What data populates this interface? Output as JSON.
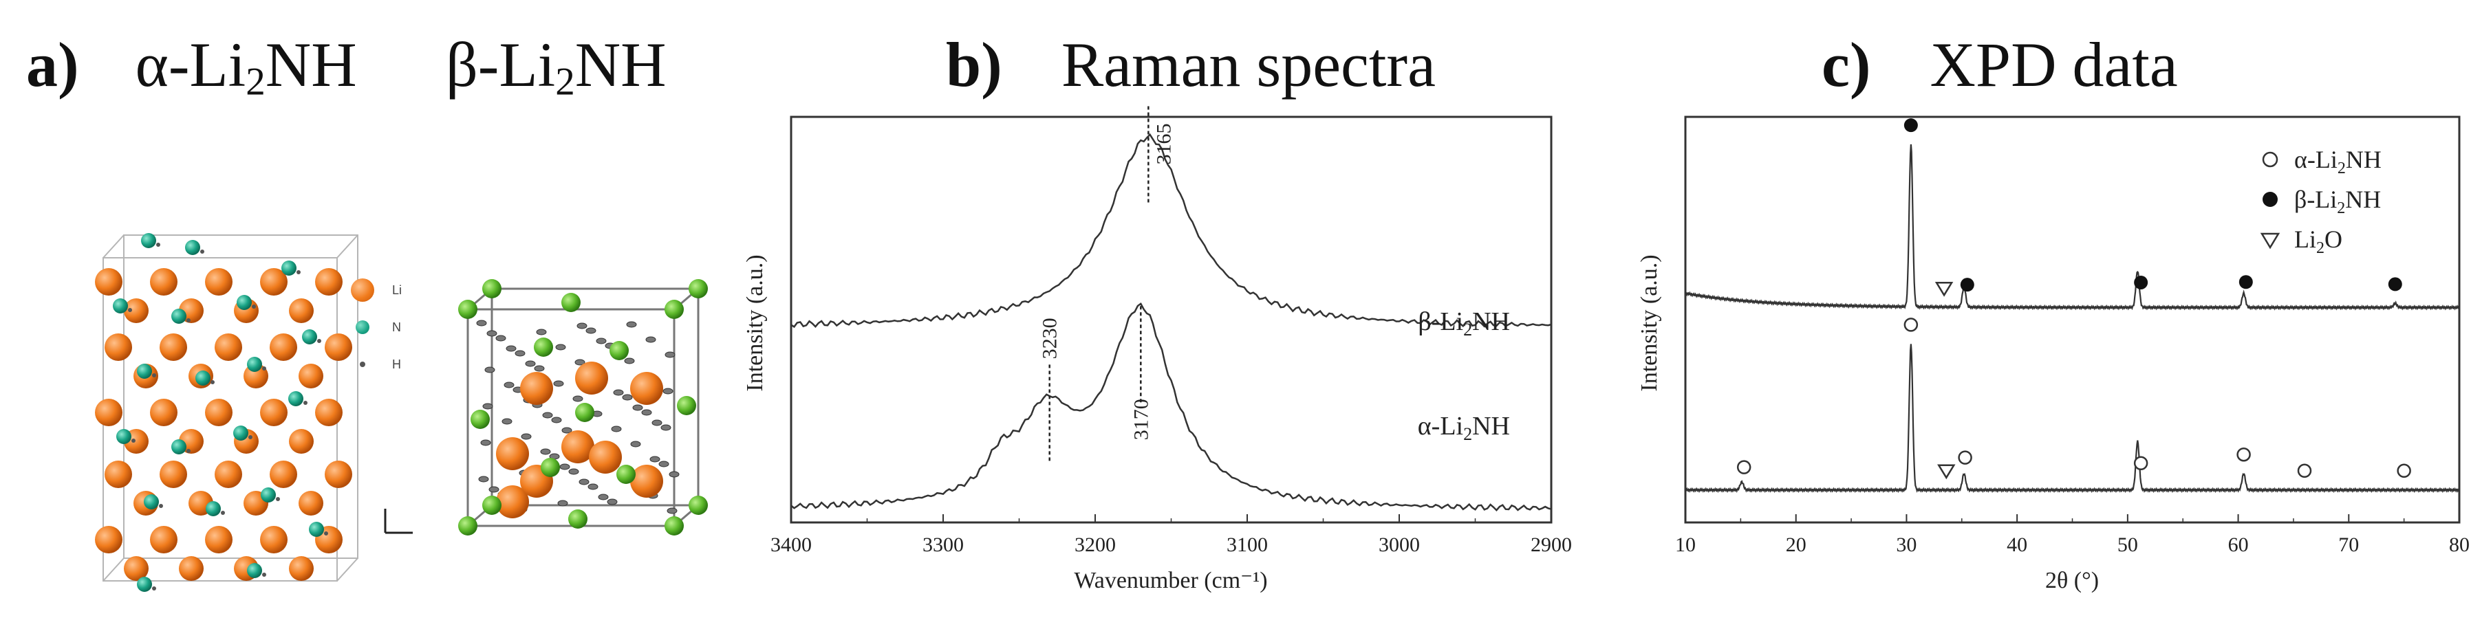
{
  "panel_a": {
    "letter": "a)",
    "alpha_title": {
      "prefix": "α-Li",
      "sub": "2",
      "suffix": "NH"
    },
    "beta_title": {
      "prefix": "β-Li",
      "sub": "2",
      "suffix": "NH"
    },
    "legend": [
      {
        "label": "Li",
        "color": "#f07b1c"
      },
      {
        "label": "N",
        "color": "#1aa486"
      },
      {
        "label": "H",
        "color": "#555555"
      }
    ],
    "beta_colors": {
      "Li": "#f07b1c",
      "N": "#5cb82a",
      "H": "#555555"
    }
  },
  "panel_b": {
    "letter": "b)",
    "title": "Raman spectra"
  },
  "panel_c": {
    "letter": "c)",
    "title": "XPD data"
  },
  "chart_data": [
    {
      "type": "line",
      "title": "Raman spectra",
      "xlabel": "Wavenumber (cm⁻¹)",
      "ylabel": "Intensity (a.u.)",
      "xlim": [
        3400,
        2900
      ],
      "x_reversed": true,
      "xticks": [
        "3400",
        "3300",
        "3200",
        "3100",
        "3000",
        "2900"
      ],
      "series": [
        {
          "name": "β-Li2NH",
          "label_pre": "β-Li",
          "label_sub": "2",
          "label_post": "NH",
          "offset": 0.48,
          "peaks": [
            {
              "x": 3165,
              "h": 0.47,
              "w": 32
            }
          ]
        },
        {
          "name": "α-Li2NH",
          "label_pre": "α-Li",
          "label_sub": "2",
          "label_post": "NH",
          "offset": 0.03,
          "peaks": [
            {
              "x": 3170,
              "h": 0.48,
              "w": 26
            },
            {
              "x": 3232,
              "h": 0.2,
              "w": 22
            },
            {
              "x": 3262,
              "h": 0.07,
              "w": 12
            }
          ]
        }
      ],
      "annotations": [
        {
          "text": "3165",
          "x": 3165,
          "series": 0
        },
        {
          "text": "3230",
          "x": 3230,
          "series": 1
        },
        {
          "text": "3170",
          "x": 3170,
          "series": 1
        }
      ],
      "grid": false
    },
    {
      "type": "line",
      "title": "XPD data",
      "xlabel": "2θ (°)",
      "ylabel": "Intensity (a.u.)",
      "xlim": [
        10,
        80
      ],
      "xticks": [
        "10",
        "20",
        "30",
        "40",
        "50",
        "60",
        "70",
        "80"
      ],
      "legend": [
        {
          "marker": "open-circle",
          "pre": "α-Li",
          "sub": "2",
          "post": "NH"
        },
        {
          "marker": "filled-circle",
          "pre": "β-Li",
          "sub": "2",
          "post": "NH"
        },
        {
          "marker": "open-triangle",
          "pre": "Li",
          "sub": "2",
          "post": "O"
        }
      ],
      "series": [
        {
          "name": "β-Li2NH",
          "offset": 0.53,
          "peaks": [
            {
              "x": 30.4,
              "h": 0.4
            },
            {
              "x": 35.2,
              "h": 0.05
            },
            {
              "x": 50.9,
              "h": 0.09
            },
            {
              "x": 60.5,
              "h": 0.035
            },
            {
              "x": 74.2,
              "h": 0.01
            }
          ],
          "markers": [
            {
              "x": 30.4,
              "type": "filled-circle"
            },
            {
              "x": 35.5,
              "type": "filled-circle"
            },
            {
              "x": 51.2,
              "type": "filled-circle"
            },
            {
              "x": 60.7,
              "type": "filled-circle"
            },
            {
              "x": 74.2,
              "type": "filled-circle"
            },
            {
              "x": 33.4,
              "type": "open-triangle"
            }
          ]
        },
        {
          "name": "α-Li2NH",
          "offset": 0.08,
          "peaks": [
            {
              "x": 15.1,
              "h": 0.02
            },
            {
              "x": 30.4,
              "h": 0.36
            },
            {
              "x": 35.2,
              "h": 0.04
            },
            {
              "x": 50.9,
              "h": 0.12
            },
            {
              "x": 60.5,
              "h": 0.04
            }
          ],
          "markers": [
            {
              "x": 15.3,
              "type": "open-circle"
            },
            {
              "x": 30.4,
              "type": "open-circle"
            },
            {
              "x": 35.3,
              "type": "open-circle"
            },
            {
              "x": 51.2,
              "type": "open-circle"
            },
            {
              "x": 60.5,
              "type": "open-circle"
            },
            {
              "x": 66.0,
              "type": "open-circle"
            },
            {
              "x": 75.0,
              "type": "open-circle"
            },
            {
              "x": 33.6,
              "type": "open-triangle"
            }
          ]
        }
      ],
      "grid": false
    }
  ]
}
